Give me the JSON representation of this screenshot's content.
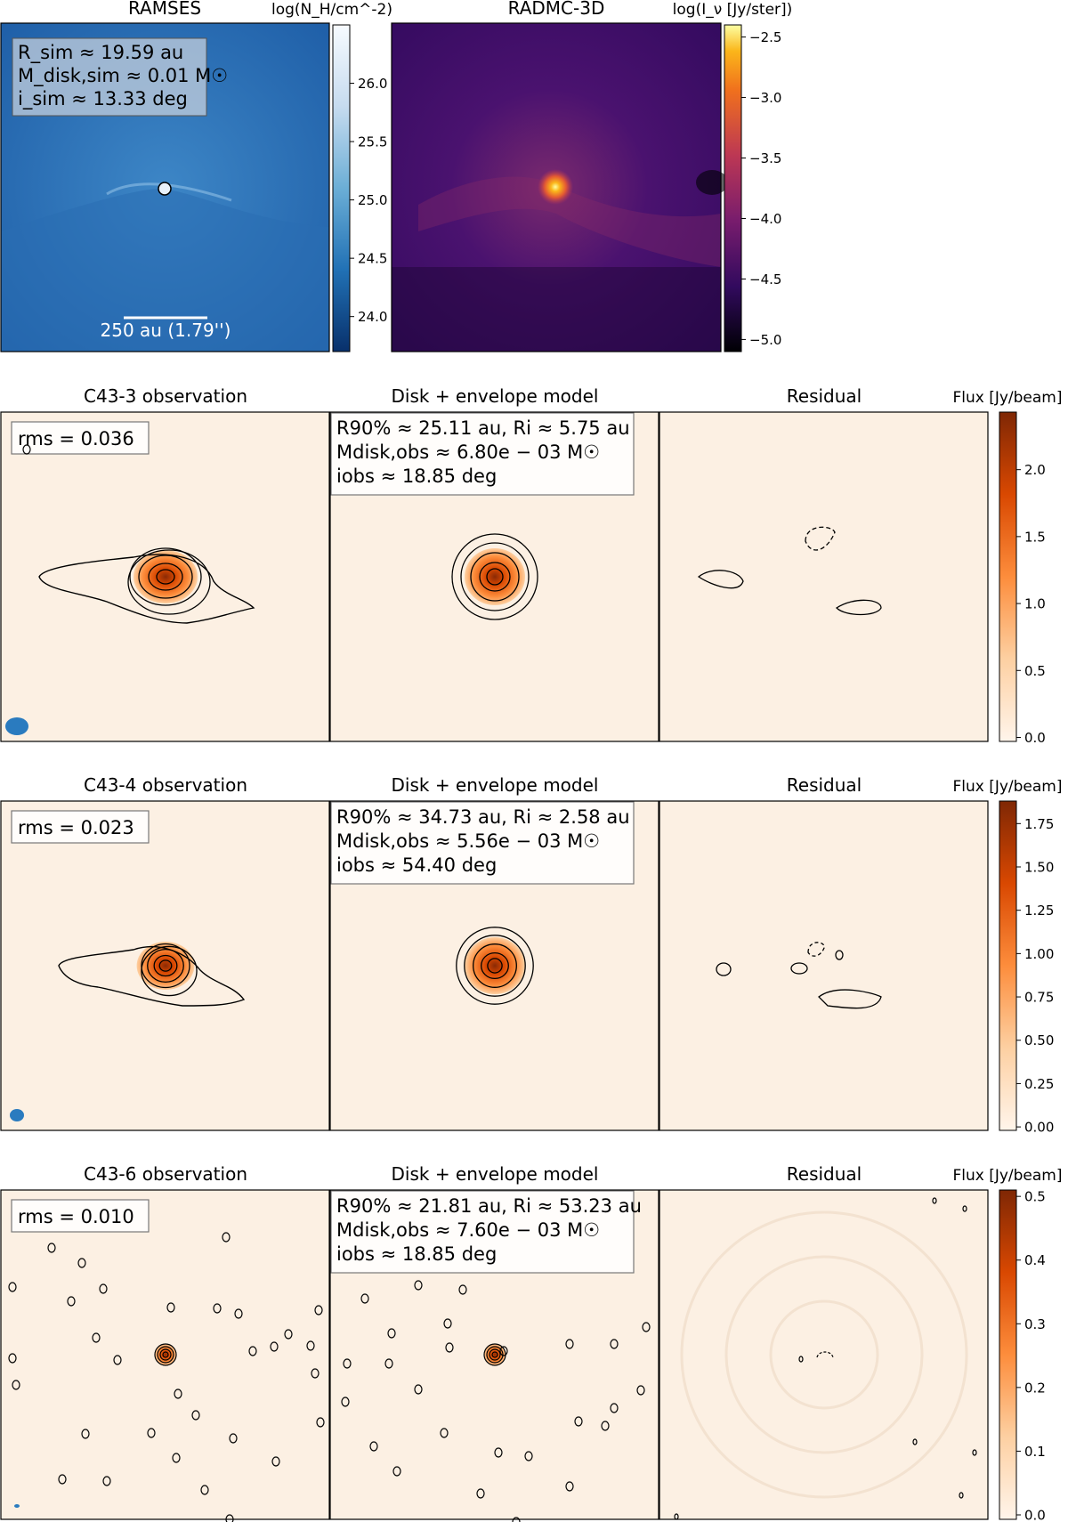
{
  "top": {
    "ramses": {
      "title": "RAMSES",
      "cbar_label": "log(N_H/cm^-2)",
      "cbar_ticks": [
        "26.0",
        "25.5",
        "25.0",
        "24.5",
        "24.0"
      ],
      "cbar_range": [
        23.7,
        26.5
      ],
      "cbar_tick_values": [
        26.0,
        25.5,
        25.0,
        24.5,
        24.0
      ],
      "info_lines": [
        "R_sim ≈ 19.59 au",
        "M_disk,sim ≈ 0.01 M☉",
        "i_sim ≈ 13.33 deg"
      ],
      "scalebar_label": "250 au (1.79'')"
    },
    "radmc": {
      "title": "RADMC-3D",
      "cbar_label": "log(I_ν [Jy/ster])",
      "cbar_ticks": [
        "−2.5",
        "−3.0",
        "−3.5",
        "−4.0",
        "−4.5",
        "−5.0"
      ],
      "cbar_range": [
        -5.1,
        -2.4
      ],
      "cbar_tick_values": [
        -2.5,
        -3.0,
        -3.5,
        -4.0,
        -4.5,
        -5.0
      ]
    }
  },
  "rows": [
    {
      "obs_title": "C43-3 observation",
      "model_title": "Disk + envelope model",
      "resid_title": "Residual",
      "rms_label": "rms = 0.036",
      "model_info": [
        "R90% ≈ 25.11 au, Ri ≈ 5.75 au",
        "Mdisk,obs ≈ 6.80e − 03 M☉",
        "iobs ≈ 18.85 deg"
      ],
      "cbar_label": "Flux [Jy/beam]",
      "cbar_ticks": [
        "2.0",
        "1.5",
        "1.0",
        "0.5",
        "0.0"
      ],
      "cbar_tick_values": [
        2.0,
        1.5,
        1.0,
        0.5,
        0.0
      ],
      "cbar_range": [
        -0.03,
        2.43
      ]
    },
    {
      "obs_title": "C43-4 observation",
      "model_title": "Disk + envelope model",
      "resid_title": "Residual",
      "rms_label": "rms = 0.023",
      "model_info": [
        "R90% ≈ 34.73 au, Ri ≈ 2.58 au",
        "Mdisk,obs ≈ 5.56e − 03 M☉",
        "iobs ≈ 54.40 deg"
      ],
      "cbar_label": "Flux [Jy/beam]",
      "cbar_ticks": [
        "1.75",
        "1.50",
        "1.25",
        "1.00",
        "0.75",
        "0.50",
        "0.25",
        "0.00"
      ],
      "cbar_tick_values": [
        1.75,
        1.5,
        1.25,
        1.0,
        0.75,
        0.5,
        0.25,
        0.0
      ],
      "cbar_range": [
        -0.02,
        1.88
      ]
    },
    {
      "obs_title": "C43-6 observation",
      "model_title": "Disk + envelope model",
      "resid_title": "Residual",
      "rms_label": "rms = 0.010",
      "model_info": [
        "R90% ≈ 21.81 au, Ri ≈ 53.23 au",
        "Mdisk,obs ≈ 7.60e − 03 M☉",
        "iobs ≈ 18.85 deg"
      ],
      "cbar_label": "Flux [Jy/beam]",
      "cbar_ticks": [
        "0.5",
        "0.4",
        "0.3",
        "0.2",
        "0.1",
        "0.0"
      ],
      "cbar_tick_values": [
        0.5,
        0.4,
        0.3,
        0.2,
        0.1,
        0.0
      ],
      "cbar_range": [
        -0.007,
        0.51
      ]
    }
  ],
  "colors": {
    "panel_bg": "#fcf0e3",
    "beam": "#2a7bbf",
    "ramses_bg": "#1f5fa8",
    "radmc_bg": "#44107a"
  }
}
